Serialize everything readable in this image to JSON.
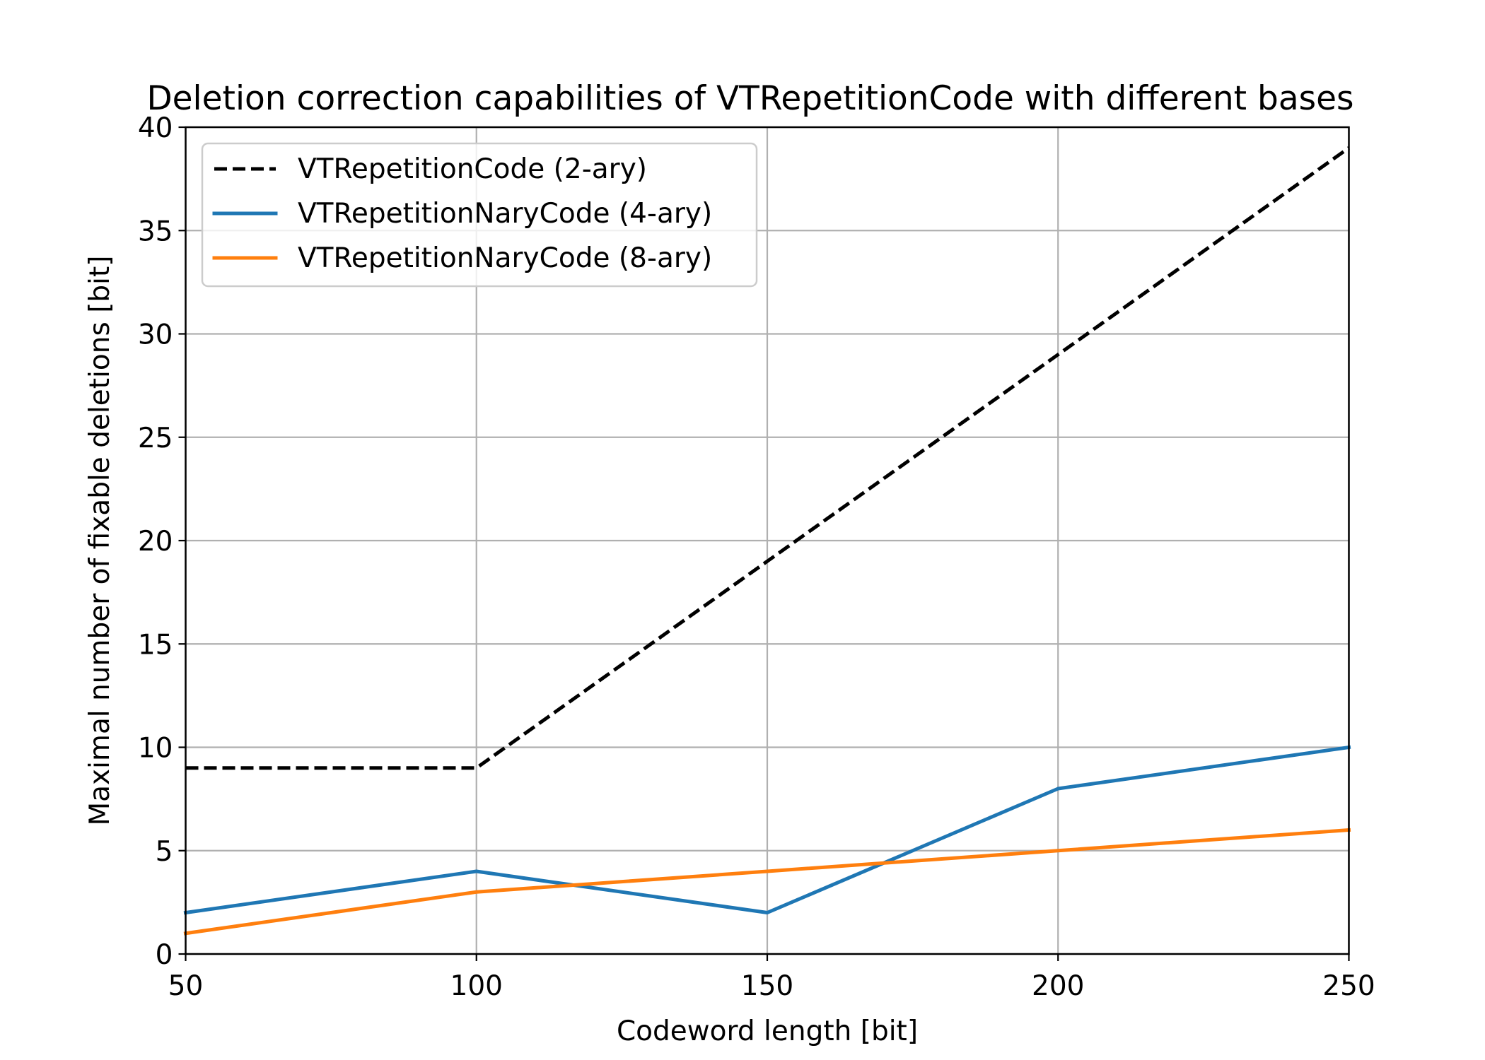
{
  "chart_data": {
    "type": "line",
    "title": "Deletion correction capabilities of VTRepetitionCode with different bases",
    "xlabel": "Codeword length [bit]",
    "ylabel": "Maximal number of fixable deletions [bit]",
    "x": [
      50,
      100,
      150,
      200,
      250
    ],
    "xlim": [
      50,
      250
    ],
    "ylim": [
      0,
      40
    ],
    "xticks": [
      50,
      100,
      150,
      200,
      250
    ],
    "yticks": [
      0,
      5,
      10,
      15,
      20,
      25,
      30,
      35,
      40
    ],
    "grid": true,
    "legend_position": "upper left",
    "series": [
      {
        "name": "VTRepetitionCode (2-ary)",
        "values": [
          9,
          9,
          19,
          29,
          39
        ],
        "color": "#000000",
        "dash": "dashed"
      },
      {
        "name": "VTRepetitionNaryCode (4-ary)",
        "values": [
          2,
          4,
          2,
          8,
          10
        ],
        "color": "#1f77b4",
        "dash": "solid"
      },
      {
        "name": "VTRepetitionNaryCode (8-ary)",
        "values": [
          1,
          3,
          4,
          5,
          6
        ],
        "color": "#ff7f0e",
        "dash": "solid"
      }
    ]
  }
}
